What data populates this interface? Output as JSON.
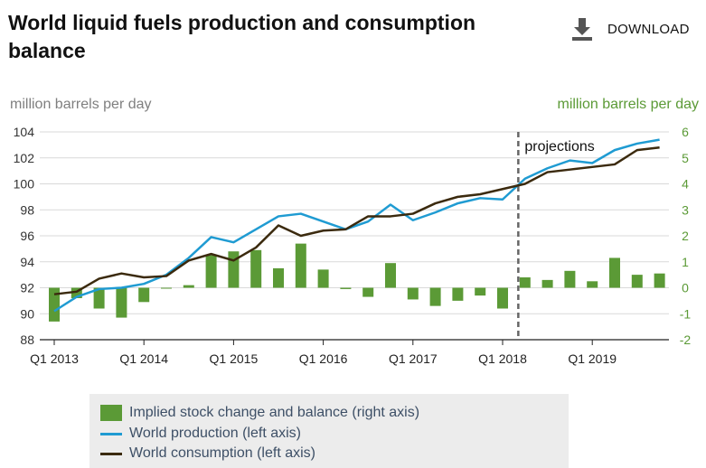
{
  "header": {
    "title": "World liquid fuels production and consumption balance",
    "download_label": "DOWNLOAD"
  },
  "axes": {
    "left_unit": "million barrels per day",
    "right_unit": "million barrels per day",
    "projection_label": "projections"
  },
  "legend": {
    "items": [
      {
        "label": "Implied stock change and balance (right axis)"
      },
      {
        "label": "World production (left axis)"
      },
      {
        "label": "World consumption (left axis)"
      }
    ]
  },
  "colors": {
    "bars": "#5b9a36",
    "production": "#1f9bd2",
    "consumption": "#3b2a0e",
    "right_axis_text": "#5b9a36",
    "left_axis_text": "#7f7f7f"
  },
  "chart_data": {
    "type": "bar+line",
    "title": "World liquid fuels production and consumption balance",
    "categories": [
      "2013Q1",
      "2013Q2",
      "2013Q3",
      "2013Q4",
      "2014Q1",
      "2014Q2",
      "2014Q3",
      "2014Q4",
      "2015Q1",
      "2015Q2",
      "2015Q3",
      "2015Q4",
      "2016Q1",
      "2016Q2",
      "2016Q3",
      "2016Q4",
      "2017Q1",
      "2017Q2",
      "2017Q3",
      "2017Q4",
      "2018Q1",
      "2018Q2",
      "2018Q3",
      "2018Q4",
      "2019Q1",
      "2019Q2",
      "2019Q3",
      "2019Q4"
    ],
    "x_tick_labels": [
      "Q1 2013",
      "Q1 2014",
      "Q1 2015",
      "Q1 2016",
      "Q1 2017",
      "Q1 2018",
      "Q1 2019"
    ],
    "projection_start_index": 20.7,
    "left_axis": {
      "label": "million barrels per day",
      "ylim": [
        88,
        104
      ],
      "ticks": [
        88,
        90,
        92,
        94,
        96,
        98,
        100,
        102,
        104
      ]
    },
    "right_axis": {
      "label": "million barrels per day",
      "ylim": [
        -2,
        6
      ],
      "ticks": [
        -2,
        -1,
        0,
        1,
        2,
        3,
        4,
        5,
        6
      ]
    },
    "series": [
      {
        "name": "Implied stock change and balance (right axis)",
        "type": "bar",
        "axis": "right",
        "values": [
          -1.3,
          -0.4,
          -0.8,
          -1.15,
          -0.55,
          0.0,
          0.1,
          1.25,
          1.4,
          1.45,
          0.75,
          1.7,
          0.7,
          -0.05,
          -0.35,
          0.95,
          -0.45,
          -0.7,
          -0.5,
          -0.3,
          -0.8,
          0.4,
          0.3,
          0.65,
          0.25,
          1.15,
          0.5,
          0.55
        ]
      },
      {
        "name": "World production (left axis)",
        "type": "line",
        "axis": "left",
        "values": [
          90.2,
          91.3,
          91.9,
          92.0,
          92.3,
          93.0,
          94.3,
          95.9,
          95.5,
          96.5,
          97.5,
          97.7,
          97.1,
          96.5,
          97.1,
          98.4,
          97.2,
          97.8,
          98.5,
          98.9,
          98.8,
          100.4,
          101.2,
          101.8,
          101.6,
          102.6,
          103.1,
          103.4
        ]
      },
      {
        "name": "World consumption (left axis)",
        "type": "line",
        "axis": "left",
        "values": [
          91.5,
          91.7,
          92.7,
          93.1,
          92.8,
          92.9,
          94.1,
          94.6,
          94.1,
          95.1,
          96.8,
          96.0,
          96.4,
          96.5,
          97.5,
          97.5,
          97.7,
          98.5,
          99.0,
          99.2,
          99.6,
          100.0,
          100.9,
          101.1,
          101.3,
          101.5,
          102.6,
          102.8
        ]
      }
    ]
  }
}
